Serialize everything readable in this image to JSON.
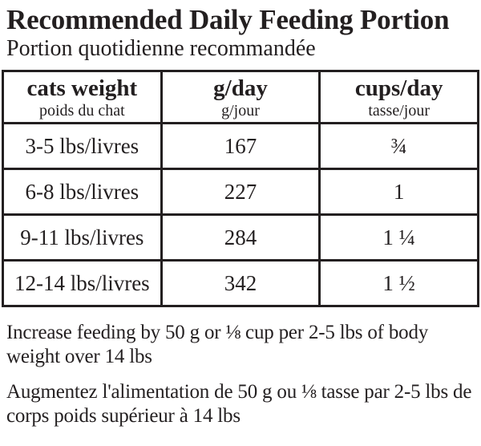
{
  "title": "Recommended Daily Feeding Portion",
  "subtitle": "Portion quotidienne recommandée",
  "table": {
    "columns": [
      {
        "label": "cats weight",
        "sublabel": "poids du chat"
      },
      {
        "label": "g/day",
        "sublabel": "g/jour"
      },
      {
        "label": "cups/day",
        "sublabel": "tasse/jour"
      }
    ],
    "rows": [
      {
        "weight": "3-5 lbs/livres",
        "g_day": "167",
        "cups_day": "¾"
      },
      {
        "weight": "6-8 lbs/livres",
        "g_day": "227",
        "cups_day": "1"
      },
      {
        "weight": "9-11 lbs/livres",
        "g_day": "284",
        "cups_day": "1 ¼"
      },
      {
        "weight": "12-14 lbs/livres",
        "g_day": "342",
        "cups_day": "1 ½"
      }
    ]
  },
  "notes": {
    "english": "Increase feeding by 50 g or ⅛ cup per 2-5 lbs of body weight over 14 lbs",
    "french": "Augmentez l'alimentation de 50 g ou ⅛ tasse par 2-5 lbs de corps poids supérieur à 14 lbs"
  },
  "colors": {
    "text": "#231f20",
    "border": "#231f20",
    "background": "#ffffff"
  }
}
